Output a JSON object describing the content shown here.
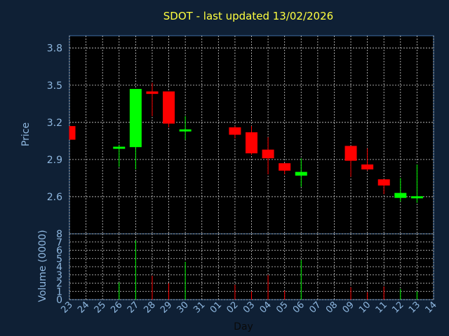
{
  "chart_data": {
    "type": "candlestick",
    "title": "SDOT - last updated 13/02/2026",
    "xlabel": "Day",
    "price_ylabel": "Price",
    "volume_ylabel": "Volume (0000)",
    "x_ticks": [
      "23",
      "24",
      "25",
      "26",
      "27",
      "28",
      "29",
      "30",
      "31",
      "01",
      "02",
      "03",
      "04",
      "05",
      "06",
      "07",
      "08",
      "09",
      "10",
      "11",
      "12",
      "13",
      "14"
    ],
    "price_ylim": [
      2.3,
      3.9
    ],
    "price_ticks": [
      "2.6",
      "2.9",
      "3.2",
      "3.5",
      "3.8"
    ],
    "volume_ylim": [
      0,
      8
    ],
    "volume_ticks": [
      "0",
      "1",
      "2",
      "3",
      "4",
      "5",
      "6",
      "7",
      "8"
    ],
    "grid": true,
    "up_color": "#00ff00",
    "down_color": "#ff0000",
    "candles": [
      {
        "day": "23",
        "open": 3.17,
        "close": 3.06,
        "high": 3.17,
        "low": 3.06,
        "volume": 0
      },
      {
        "day": "26",
        "open": 2.99,
        "close": 3.0,
        "high": 3.02,
        "low": 2.84,
        "volume": 2.1
      },
      {
        "day": "27",
        "open": 3.0,
        "close": 3.47,
        "high": 3.47,
        "low": 2.82,
        "volume": 7.2
      },
      {
        "day": "28",
        "open": 3.45,
        "close": 3.43,
        "high": 3.52,
        "low": 3.25,
        "volume": 2.9
      },
      {
        "day": "29",
        "open": 3.45,
        "close": 3.19,
        "high": 3.45,
        "low": 3.16,
        "volume": 2.0
      },
      {
        "day": "30",
        "open": 3.13,
        "close": 3.14,
        "high": 3.25,
        "low": 3.06,
        "volume": 4.6
      },
      {
        "day": "02",
        "open": 3.16,
        "close": 3.1,
        "high": 3.17,
        "low": 3.07,
        "volume": 1.8
      },
      {
        "day": "03",
        "open": 3.12,
        "close": 2.95,
        "high": 3.17,
        "low": 2.94,
        "volume": 1.0
      },
      {
        "day": "04",
        "open": 2.98,
        "close": 2.91,
        "high": 3.08,
        "low": 2.78,
        "volume": 3.0
      },
      {
        "day": "05",
        "open": 2.87,
        "close": 2.81,
        "high": 2.87,
        "low": 2.78,
        "volume": 1.1
      },
      {
        "day": "06",
        "open": 2.77,
        "close": 2.8,
        "high": 2.91,
        "low": 2.68,
        "volume": 4.8
      },
      {
        "day": "09",
        "open": 3.01,
        "close": 2.89,
        "high": 3.01,
        "low": 2.76,
        "volume": 1.5
      },
      {
        "day": "10",
        "open": 2.86,
        "close": 2.82,
        "high": 2.99,
        "low": 2.81,
        "volume": 0.9
      },
      {
        "day": "11",
        "open": 2.74,
        "close": 2.69,
        "high": 2.74,
        "low": 2.62,
        "volume": 1.6
      },
      {
        "day": "12",
        "open": 2.59,
        "close": 2.63,
        "high": 2.75,
        "low": 2.56,
        "volume": 1.3
      },
      {
        "day": "13",
        "open": 2.59,
        "close": 2.6,
        "high": 2.86,
        "low": 2.55,
        "volume": 1.0
      }
    ]
  }
}
